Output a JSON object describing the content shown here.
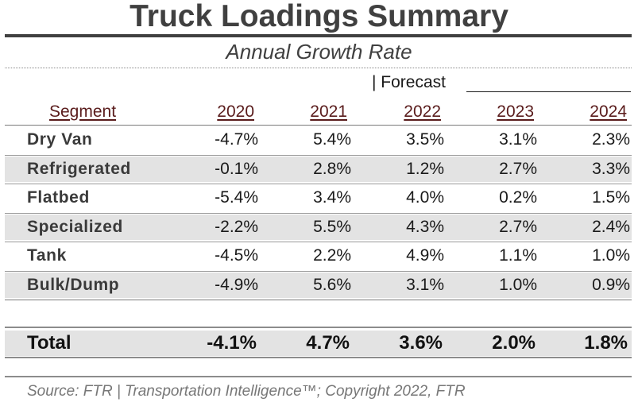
{
  "chart_data": {
    "type": "table",
    "title": "Truck Loadings Summary",
    "subtitle": "Annual Growth Rate",
    "forecast_label": "| Forecast",
    "columns": [
      "Segment",
      "2020",
      "2021",
      "2022",
      "2023",
      "2024"
    ],
    "rows": [
      {
        "segment": "Dry Van",
        "values": [
          "-4.7%",
          "5.4%",
          "3.5%",
          "3.1%",
          "2.3%"
        ]
      },
      {
        "segment": "Refrigerated",
        "values": [
          "-0.1%",
          "2.8%",
          "1.2%",
          "2.7%",
          "3.3%"
        ]
      },
      {
        "segment": "Flatbed",
        "values": [
          "-5.4%",
          "3.4%",
          "4.0%",
          "0.2%",
          "1.5%"
        ]
      },
      {
        "segment": "Specialized",
        "values": [
          "-2.2%",
          "5.5%",
          "4.3%",
          "2.7%",
          "2.4%"
        ]
      },
      {
        "segment": "Tank",
        "values": [
          "-4.5%",
          "2.2%",
          "4.9%",
          "1.1%",
          "1.0%"
        ]
      },
      {
        "segment": "Bulk/Dump",
        "values": [
          "-4.9%",
          "5.6%",
          "3.1%",
          "1.0%",
          "0.9%"
        ]
      }
    ],
    "total": {
      "segment": "Total",
      "values": [
        "-4.1%",
        "4.7%",
        "3.6%",
        "2.0%",
        "1.8%"
      ]
    },
    "source": "Source: FTR | Transportation Intelligence™; Copyright 2022, FTR"
  }
}
